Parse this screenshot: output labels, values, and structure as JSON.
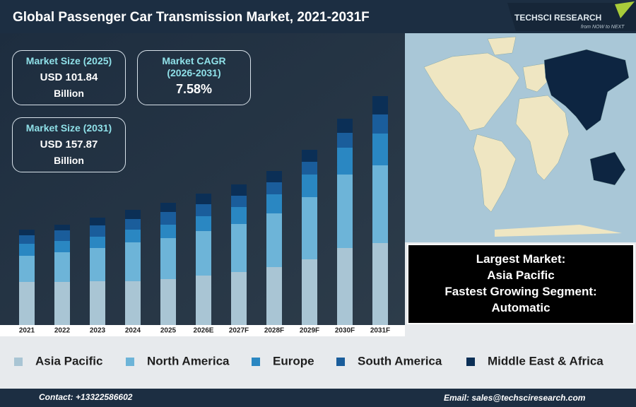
{
  "header": {
    "title": "Global Passenger Car Transmission Market, 2021-2031F",
    "logo": "TECHSCI RESEARCH",
    "tagline": "from NOW to NEXT"
  },
  "stats": [
    {
      "label": [
        "Market Size (2025)"
      ],
      "value": "USD 101.84",
      "unit": "Billion"
    },
    {
      "label": [
        "Market CAGR",
        "(2026-2031)"
      ],
      "value": "7.58%"
    },
    {
      "label": [
        "Market Size (2031)"
      ],
      "value": "USD 157.87",
      "unit": "Billion"
    }
  ],
  "highlights": [
    "Largest Market:",
    "Asia Pacific",
    "Fastest Growing Segment:",
    "Automatic"
  ],
  "chart_data": {
    "type": "bar",
    "stacked": true,
    "categories": [
      "2021",
      "2022",
      "2023",
      "2024",
      "2025",
      "2026E",
      "2027F",
      "2028F",
      "2029F",
      "2030F",
      "2031F"
    ],
    "series": [
      {
        "name": "Asia Pacific",
        "color": "#a9c5d4",
        "values": [
          61,
          61,
          62,
          62,
          65,
          70,
          75,
          82,
          93,
          109,
          116
        ]
      },
      {
        "name": "North America",
        "color": "#6db4d8",
        "values": [
          37,
          42,
          47,
          55,
          58,
          63,
          68,
          76,
          88,
          104,
          110
        ]
      },
      {
        "name": "Europe",
        "color": "#2a87c2",
        "values": [
          17,
          16,
          16,
          18,
          19,
          21,
          24,
          27,
          32,
          38,
          45
        ]
      },
      {
        "name": "South America",
        "color": "#1a5d9b",
        "values": [
          12,
          15,
          16,
          15,
          18,
          17,
          16,
          17,
          18,
          21,
          27
        ]
      },
      {
        "name": "Middle East & Africa",
        "color": "#0b2f56",
        "values": [
          8,
          8,
          11,
          13,
          13,
          15,
          16,
          16,
          17,
          20,
          26
        ]
      }
    ]
  },
  "footer": {
    "contact": "Contact: +13322586602",
    "email": "Email: sales@techsciresearch.com"
  }
}
